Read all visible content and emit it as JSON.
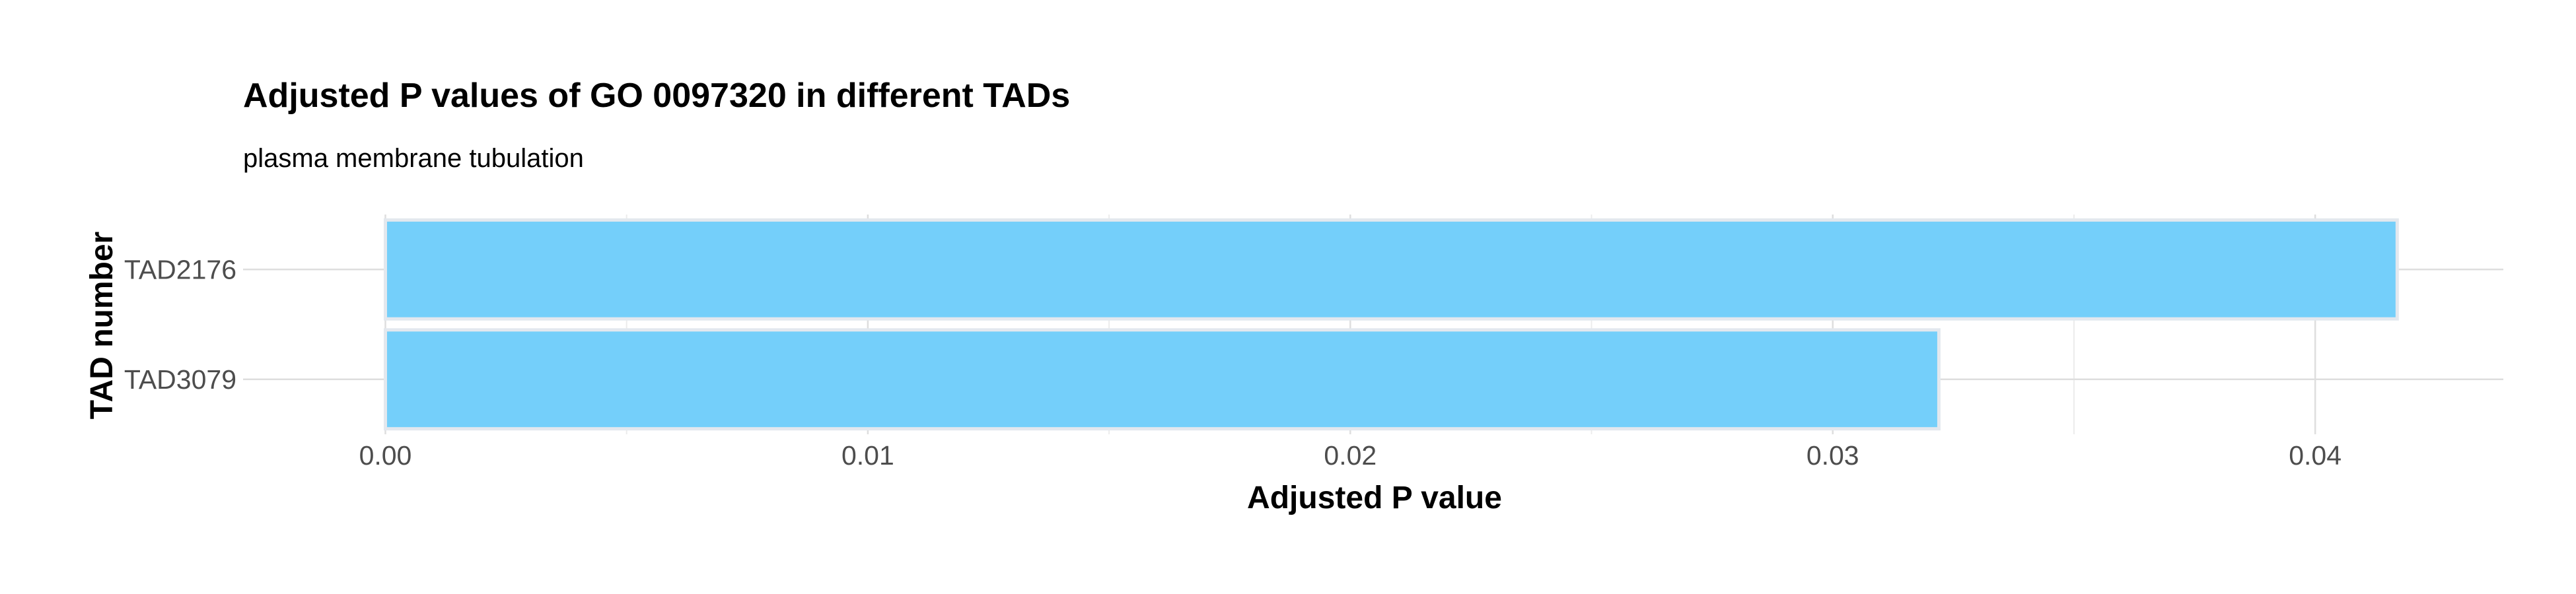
{
  "chart_data": {
    "type": "bar",
    "orientation": "horizontal",
    "title": "Adjusted P values of GO 0097320 in different TADs",
    "subtitle": "plasma membrane tubulation",
    "xlabel": "Adjusted P value",
    "ylabel": "TAD number",
    "categories": [
      "TAD2176",
      "TAD3079"
    ],
    "values": [
      0.0417,
      0.0322
    ],
    "xlim": [
      -0.00295,
      0.0439
    ],
    "xticks": [
      0.0,
      0.01,
      0.02,
      0.03,
      0.04
    ],
    "xtick_labels": [
      "0.00",
      "0.01",
      "0.02",
      "0.03",
      "0.04"
    ],
    "grid": true,
    "legend": "none",
    "colors": {
      "bar_fill": "#74cffa",
      "bar_outline": "#e3e8ee",
      "grid_major": "#dedede",
      "grid_minor": "#ececec"
    }
  }
}
